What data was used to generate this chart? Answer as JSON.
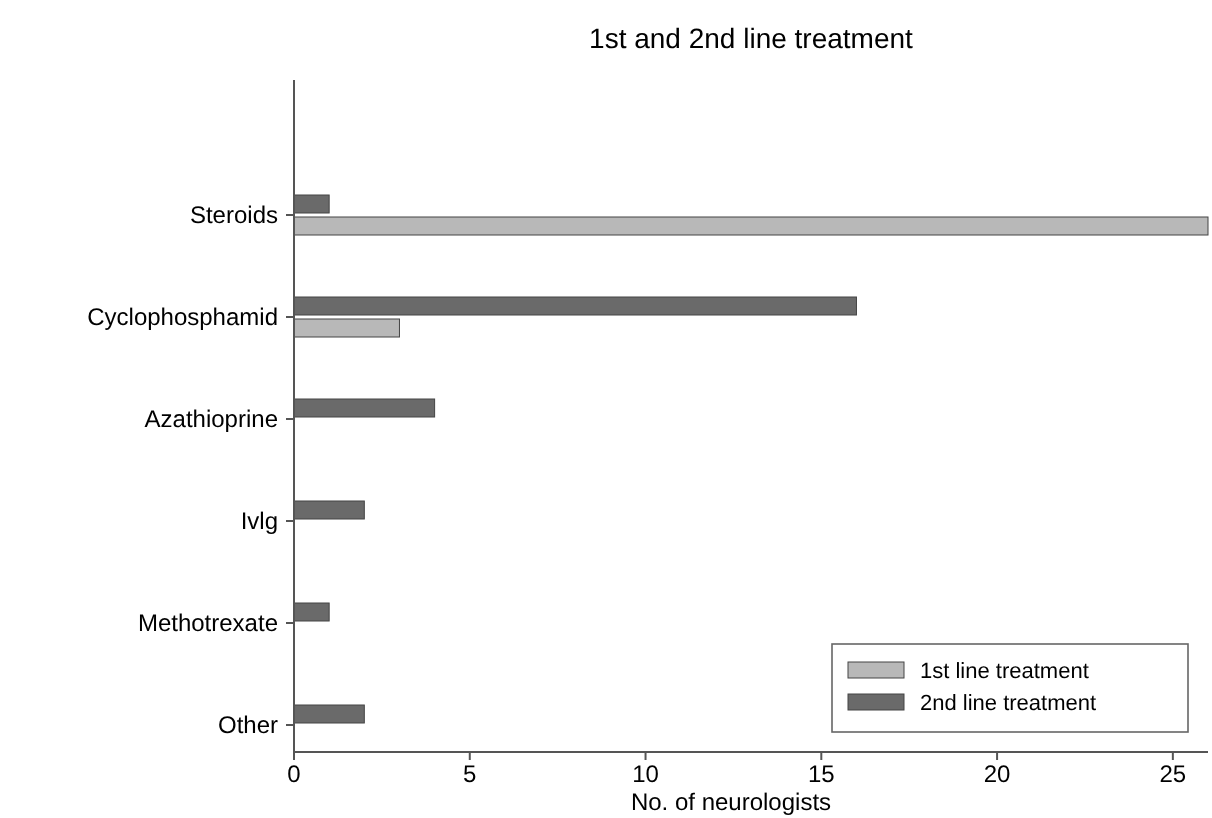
{
  "chart_data": {
    "type": "bar",
    "orientation": "horizontal",
    "title": "1st and 2nd line treatment",
    "xlabel": "No. of neurologists",
    "categories": [
      "Steroids",
      "Cyclophosphamid",
      "Azathioprine",
      "Ivlg",
      "Methotrexate",
      "Other"
    ],
    "series": [
      {
        "name": "1st line treatment",
        "color": "#b8b8b8",
        "values": [
          26,
          3,
          0,
          0,
          0,
          0
        ]
      },
      {
        "name": "2nd line treatment",
        "color": "#6a6a6a",
        "values": [
          1,
          16,
          4,
          2,
          1,
          2
        ]
      }
    ],
    "xlim": [
      0,
      26
    ],
    "xticks": [
      0,
      5,
      10,
      15,
      20,
      25
    ],
    "grid": false,
    "legend": "bottom right"
  }
}
